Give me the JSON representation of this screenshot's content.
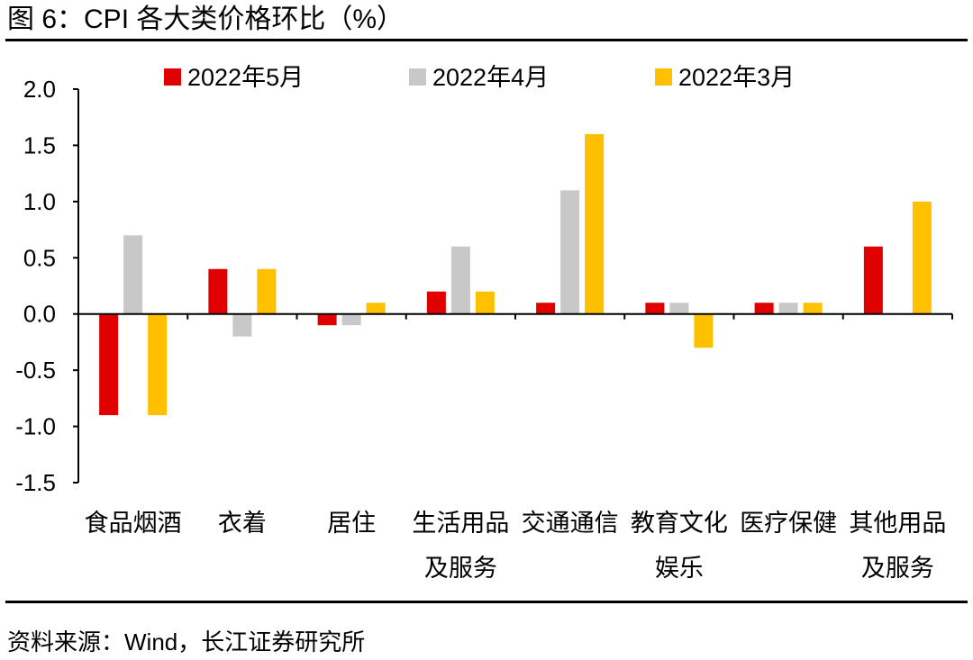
{
  "header": {
    "title": "图 6：CPI 各大类价格环比（%）"
  },
  "footer": {
    "source": "资料来源：Wind，长江证券研究所"
  },
  "chart_data": {
    "type": "bar",
    "title": "图 6：CPI 各大类价格环比（%）",
    "categories": [
      [
        "食品烟酒"
      ],
      [
        "衣着"
      ],
      [
        "居住"
      ],
      [
        "生活用品",
        "及服务"
      ],
      [
        "交通通信"
      ],
      [
        "教育文化",
        "娱乐"
      ],
      [
        "医疗保健"
      ],
      [
        "其他用品",
        "及服务"
      ]
    ],
    "series": [
      {
        "name": "2022年5月",
        "color": "#E00000",
        "values": [
          -0.9,
          0.4,
          -0.1,
          0.2,
          0.1,
          0.1,
          0.1,
          0.6
        ]
      },
      {
        "name": "2022年4月",
        "color": "#C8C8C8",
        "values": [
          0.7,
          -0.2,
          -0.1,
          0.6,
          1.1,
          0.1,
          0.1,
          0.0
        ]
      },
      {
        "name": "2022年3月",
        "color": "#FFC000",
        "values": [
          -0.9,
          0.4,
          0.1,
          0.2,
          1.6,
          -0.3,
          0.1,
          1.0
        ]
      }
    ],
    "ylim": [
      -1.5,
      2.0
    ],
    "yticks": [
      "2.0",
      "1.5",
      "1.0",
      "0.5",
      "0.0",
      "-0.5",
      "-1.0",
      "-1.5"
    ],
    "ytick_values": [
      2.0,
      1.5,
      1.0,
      0.5,
      0.0,
      -0.5,
      -1.0,
      -1.5
    ],
    "legend": "top",
    "grid": false
  }
}
